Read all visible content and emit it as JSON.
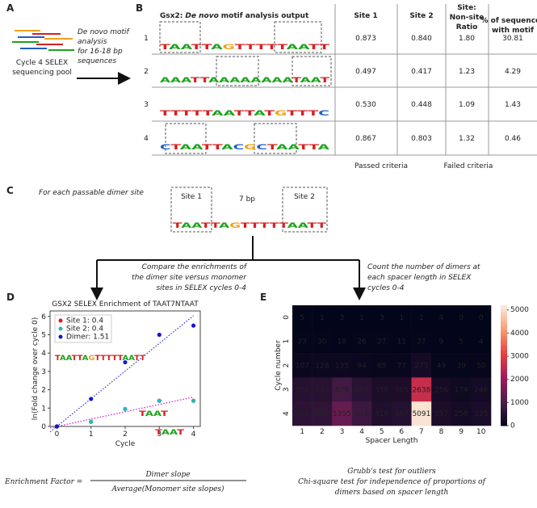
{
  "panel_a": {
    "label": "A",
    "pool_label": [
      "Cycle 4 SELEX",
      "sequencing pool"
    ],
    "arrow_text": [
      "De novo motif",
      "analysis",
      "for 16-18 bp",
      "sequences"
    ]
  },
  "panel_b": {
    "label": "B",
    "title_prefix": "Gsx2:",
    "title_italic": "De novo",
    "title_suffix": "motif analysis output",
    "columns": [
      [
        "Site 1"
      ],
      [
        "Site 2"
      ],
      [
        "Site:",
        "Non-site",
        "Ratio"
      ],
      [
        "% of sequences",
        "with motif"
      ]
    ],
    "rows": [
      {
        "index": "1",
        "logo": "TAATTAGTTTTTAATT",
        "cells": [
          "0.873",
          "0.840",
          "1.80",
          "30.81"
        ],
        "passed": [
          true,
          true,
          true,
          true
        ]
      },
      {
        "index": "2",
        "logo": "AAATTAAAAAAAATAAT",
        "cells": [
          "0.497",
          "0.417",
          "1.23",
          "4.29"
        ],
        "passed": [
          false,
          false,
          false,
          false
        ]
      },
      {
        "index": "3",
        "logo": "TTTTTAATTATGTTTC",
        "cells": [
          "0.530",
          "0.448",
          "1.09",
          "1.43"
        ],
        "passed": [
          false,
          false,
          false,
          false
        ]
      },
      {
        "index": "4",
        "logo": "CTAATTACGCTAATTA",
        "cells": [
          "0.867",
          "0.803",
          "1.32",
          "0.46"
        ],
        "passed": [
          true,
          true,
          false,
          false
        ]
      }
    ],
    "passed_color": "#2e75b6",
    "failed_color": "#222222",
    "legend_passed": "Passed criteria",
    "legend_failed": "Failed criteria"
  },
  "panel_c": {
    "label": "C",
    "intro": "For each passable dimer site",
    "site1": "Site 1",
    "spacer": "7 bp",
    "site2": "Site 2",
    "logo": "TAATTAGTTTTTAATT",
    "left_text": [
      "Compare the enrichments of",
      "the dimer site versus monomer",
      "sites in SELEX cycles 0-4"
    ],
    "right_text": [
      "Count the number of dimers at",
      "each spacer length in SELEX",
      "cycles 0-4"
    ]
  },
  "panel_d": {
    "label": "D",
    "logo_main": "TAATTAGTTTTTAATT",
    "logo_site1": "TAAT",
    "logo_site2": "TAAT",
    "formula_left": "Enrichment Factor =",
    "formula_numerator": "Dimer slope",
    "formula_denominator": "Average(Monomer site slopes)"
  },
  "panel_e": {
    "label": "E",
    "notes": [
      "Grubb's test for outliers",
      "Chi-square test for independence of proportions of",
      "dimers based on spacer length"
    ]
  },
  "chart_data": [
    {
      "type": "scatter",
      "title": "GSX2 SELEX Enrichment of TAAT7NTAAT",
      "xlabel": "Cycle",
      "ylabel": "ln(Fold change over cycle 0)",
      "x": [
        0,
        1,
        2,
        3,
        4
      ],
      "xlim": [
        -0.2,
        4.2
      ],
      "ylim": [
        0,
        6.3
      ],
      "xticks": [
        0,
        1,
        2,
        3,
        4
      ],
      "yticks": [
        0,
        1,
        2,
        3,
        4,
        5,
        6
      ],
      "legend": "upper left",
      "series": [
        {
          "name": "Site 1: 0.4",
          "color": "#e41a1c",
          "values": [
            0,
            0.25,
            0.95,
            1.4,
            1.4
          ],
          "trend_slope": 0.4,
          "trend_color": "#d63bd6"
        },
        {
          "name": "Site 2: 0.4",
          "color": "#2ab7b7",
          "values": [
            0,
            0.25,
            0.95,
            1.4,
            1.4
          ],
          "trend_slope": 0.4,
          "trend_color": "#d63bd6"
        },
        {
          "name": "Dimer: 1.51",
          "color": "#1515d0",
          "values": [
            0,
            1.5,
            3.5,
            5.0,
            5.5
          ],
          "trend_slope": 1.51,
          "trend_color": "#3030d0"
        }
      ]
    },
    {
      "type": "heatmap",
      "xlabel": "Spacer Length",
      "ylabel": "Cycle number",
      "x": [
        "1",
        "2",
        "3",
        "4",
        "5",
        "6",
        "7",
        "8",
        "9",
        "10"
      ],
      "y": [
        "0",
        "1",
        "2",
        "3",
        "4"
      ],
      "values": [
        [
          5,
          1,
          3,
          1,
          3,
          1,
          1,
          4,
          0,
          0
        ],
        [
          23,
          30,
          18,
          26,
          27,
          11,
          27,
          9,
          5,
          4
        ],
        [
          107,
          128,
          135,
          94,
          65,
          77,
          273,
          49,
          39,
          50
        ],
        [
          508,
          533,
          879,
          558,
          356,
          365,
          2638,
          256,
          174,
          246
        ],
        [
          591,
          647,
          1355,
          816,
          410,
          467,
          5091,
          357,
          258,
          325
        ]
      ],
      "clim": [
        0,
        5200
      ],
      "cticks": [
        0,
        1000,
        2000,
        3000,
        4000,
        5000
      ],
      "colormap": "rocket"
    }
  ]
}
